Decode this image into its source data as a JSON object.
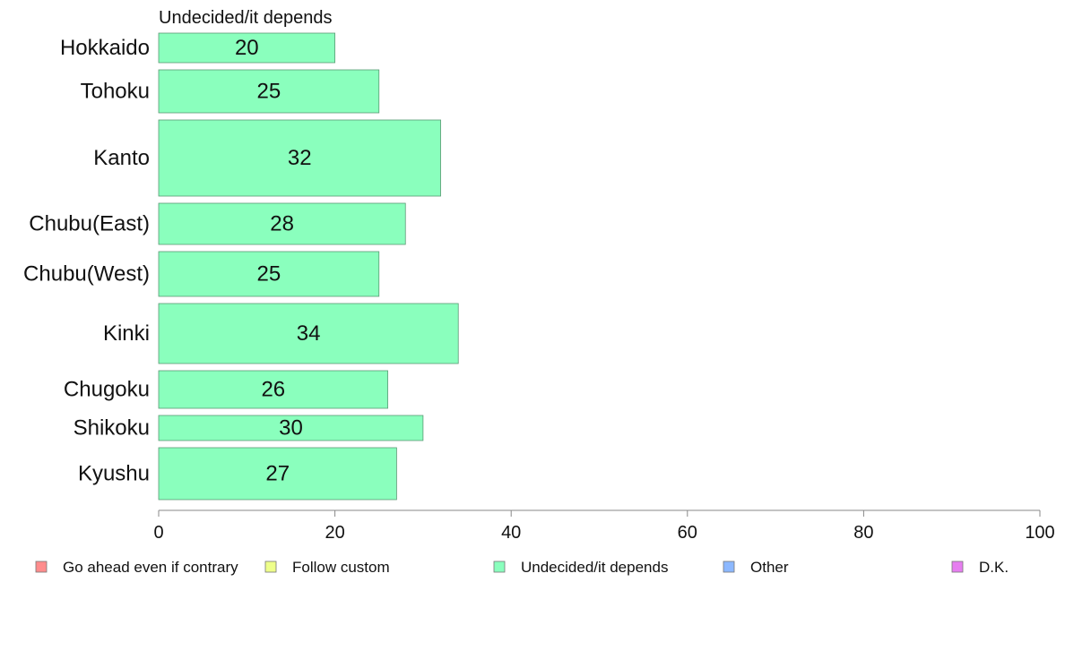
{
  "chart_data": {
    "type": "bar",
    "orientation": "horizontal",
    "title": "Undecided/it depends",
    "categories": [
      "Hokkaido",
      "Tohoku",
      "Kanto",
      "Chubu(East)",
      "Chubu(West)",
      "Kinki",
      "Chugoku",
      "Shikoku",
      "Kyushu"
    ],
    "values": [
      20,
      25,
      32,
      28,
      25,
      34,
      26,
      30,
      27
    ],
    "xlim": [
      0,
      100
    ],
    "xticks": [
      "0",
      "20",
      "40",
      "60",
      "80",
      "100"
    ],
    "grid": false,
    "bar_color": "#8affbd",
    "legend_position": "bottom",
    "legend": [
      {
        "label": "Go ahead even if contrary",
        "color": "#ff8c8c"
      },
      {
        "label": "Follow custom",
        "color": "#eeff8a"
      },
      {
        "label": "Undecided/it depends",
        "color": "#8affbd"
      },
      {
        "label": "Other",
        "color": "#8cb8ff"
      },
      {
        "label": "D.K.",
        "color": "#e67ef0"
      }
    ]
  }
}
